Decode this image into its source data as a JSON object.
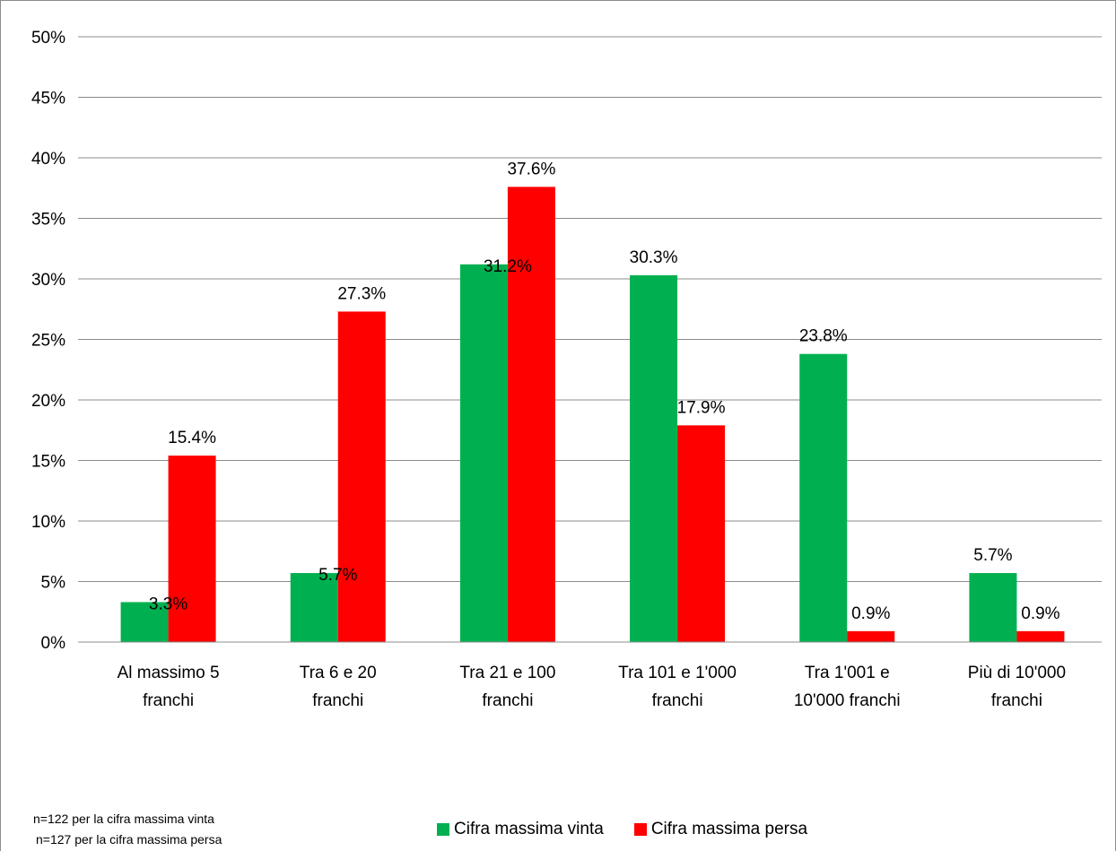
{
  "chart_data": {
    "type": "bar",
    "categories": [
      [
        "Al massimo 5",
        "franchi"
      ],
      [
        "Tra 6 e 20",
        "franchi"
      ],
      [
        "Tra 21 e 100",
        "franchi"
      ],
      [
        "Tra 101 e 1'000",
        "franchi"
      ],
      [
        "Tra 1'001 e",
        "10'000 franchi"
      ],
      [
        "Più di 10'000",
        "franchi"
      ]
    ],
    "series": [
      {
        "name": "Cifra massima vinta",
        "color": "#00b050",
        "values": [
          3.3,
          5.7,
          31.2,
          30.3,
          23.8,
          5.7
        ],
        "labels": [
          "3.3%",
          "5.7%",
          "31.2%",
          "30.3%",
          "23.8%",
          "5.7%"
        ]
      },
      {
        "name": "Cifra massima persa",
        "color": "#ff0000",
        "values": [
          15.4,
          27.3,
          37.6,
          17.9,
          0.9,
          0.9
        ],
        "labels": [
          "15.4%",
          "27.3%",
          "37.6%",
          "17.9%",
          "0.9%",
          "0.9%"
        ]
      }
    ],
    "ylim": [
      0,
      50
    ],
    "yticks": [
      0,
      5,
      10,
      15,
      20,
      25,
      30,
      35,
      40,
      45,
      50
    ],
    "ytick_labels": [
      "0%",
      "5%",
      "10%",
      "15%",
      "20%",
      "25%",
      "30%",
      "35%",
      "40%",
      "45%",
      "50%"
    ],
    "grid": true,
    "legend_position": "bottom"
  },
  "notes": [
    "n=122 per la cifra massima vinta",
    "n=127 per la cifra massima persa"
  ],
  "colors": {
    "grid": "#8c8c8c",
    "axis": "#8c8c8c"
  }
}
